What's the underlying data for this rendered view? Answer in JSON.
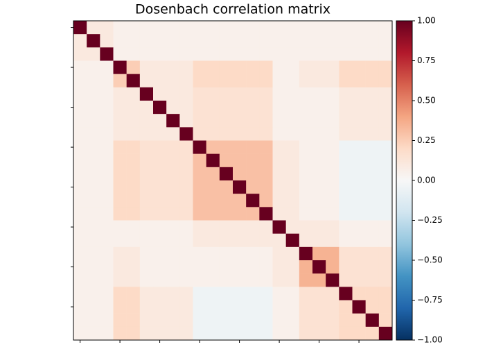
{
  "chart_data": {
    "type": "heatmap",
    "title": "Dosenbach correlation matrix",
    "colormap": "RdBu_r",
    "xlim": [
      -0.5,
      23.5
    ],
    "ylim": [
      -0.5,
      23.5
    ],
    "xticks": [
      0,
      3,
      6,
      9,
      12,
      15,
      18,
      21
    ],
    "yticks": [
      0,
      3,
      6,
      9,
      12,
      15,
      18,
      21
    ],
    "clim": [
      -1,
      1
    ],
    "cticks": [
      {
        "value": -1,
        "label": "−1.00"
      },
      {
        "value": -0.75,
        "label": "−0.75"
      },
      {
        "value": -0.5,
        "label": "−0.50"
      },
      {
        "value": -0.25,
        "label": "−0.25"
      },
      {
        "value": 0,
        "label": "0.00"
      },
      {
        "value": 0.25,
        "label": "0.25"
      },
      {
        "value": 0.5,
        "label": "0.50"
      },
      {
        "value": 0.75,
        "label": "0.75"
      },
      {
        "value": 1,
        "label": "1.00"
      }
    ],
    "matrix": [
      [
        1,
        0.1,
        0.1,
        0.05,
        0.05,
        0.05,
        0.05,
        0.05,
        0.05,
        0.05,
        0.05,
        0.05,
        0.05,
        0.05,
        0.05,
        0.05,
        0.05,
        0.05,
        0.05,
        0.05,
        0.05,
        0.05,
        0.05,
        0.05
      ],
      [
        0.1,
        1,
        0.1,
        0.05,
        0.05,
        0.05,
        0.05,
        0.05,
        0.05,
        0.05,
        0.05,
        0.05,
        0.05,
        0.05,
        0.05,
        0.05,
        0.05,
        0.05,
        0.05,
        0.05,
        0.05,
        0.05,
        0.05,
        0.05
      ],
      [
        0.1,
        0.1,
        1,
        0.05,
        0.05,
        0.05,
        0.05,
        0.05,
        0.05,
        0.05,
        0.05,
        0.05,
        0.05,
        0.05,
        0.05,
        0.05,
        0.05,
        0.05,
        0.05,
        0.05,
        0.05,
        0.05,
        0.05,
        0.05
      ],
      [
        0.05,
        0.05,
        0.05,
        1,
        0.25,
        0.1,
        0.1,
        0.1,
        0.1,
        0.2,
        0.2,
        0.2,
        0.2,
        0.2,
        0.2,
        0.05,
        0.05,
        0.1,
        0.1,
        0.1,
        0.2,
        0.2,
        0.2,
        0.2
      ],
      [
        0.05,
        0.05,
        0.05,
        0.25,
        1,
        0.1,
        0.1,
        0.1,
        0.1,
        0.2,
        0.2,
        0.2,
        0.2,
        0.2,
        0.2,
        0.05,
        0.05,
        0.1,
        0.1,
        0.1,
        0.2,
        0.2,
        0.2,
        0.2
      ],
      [
        0.05,
        0.05,
        0.05,
        0.1,
        0.1,
        1,
        0.1,
        0.1,
        0.1,
        0.15,
        0.15,
        0.15,
        0.15,
        0.15,
        0.15,
        0.05,
        0.05,
        0.05,
        0.05,
        0.05,
        0.1,
        0.1,
        0.1,
        0.1
      ],
      [
        0.05,
        0.05,
        0.05,
        0.1,
        0.1,
        0.1,
        1,
        0.1,
        0.1,
        0.15,
        0.15,
        0.15,
        0.15,
        0.15,
        0.15,
        0.05,
        0.05,
        0.05,
        0.05,
        0.05,
        0.1,
        0.1,
        0.1,
        0.1
      ],
      [
        0.05,
        0.05,
        0.05,
        0.1,
        0.1,
        0.1,
        0.1,
        1,
        0.1,
        0.15,
        0.15,
        0.15,
        0.15,
        0.15,
        0.15,
        0.05,
        0.05,
        0.05,
        0.05,
        0.05,
        0.1,
        0.1,
        0.1,
        0.1
      ],
      [
        0.05,
        0.05,
        0.05,
        0.1,
        0.1,
        0.1,
        0.1,
        0.1,
        1,
        0.15,
        0.15,
        0.15,
        0.15,
        0.15,
        0.15,
        0.05,
        0.05,
        0.05,
        0.05,
        0.05,
        0.1,
        0.1,
        0.1,
        0.1
      ],
      [
        0.05,
        0.05,
        0.05,
        0.2,
        0.2,
        0.15,
        0.15,
        0.15,
        0.15,
        1,
        0.3,
        0.3,
        0.3,
        0.3,
        0.3,
        0.1,
        0.1,
        0.05,
        0.05,
        0.05,
        -0.05,
        -0.05,
        -0.05,
        -0.05
      ],
      [
        0.05,
        0.05,
        0.05,
        0.2,
        0.2,
        0.15,
        0.15,
        0.15,
        0.15,
        0.3,
        1,
        0.3,
        0.3,
        0.3,
        0.3,
        0.1,
        0.1,
        0.05,
        0.05,
        0.05,
        -0.05,
        -0.05,
        -0.05,
        -0.05
      ],
      [
        0.05,
        0.05,
        0.05,
        0.2,
        0.2,
        0.15,
        0.15,
        0.15,
        0.15,
        0.3,
        0.3,
        1,
        0.3,
        0.3,
        0.3,
        0.1,
        0.1,
        0.05,
        0.05,
        0.05,
        -0.05,
        -0.05,
        -0.05,
        -0.05
      ],
      [
        0.05,
        0.05,
        0.05,
        0.2,
        0.2,
        0.15,
        0.15,
        0.15,
        0.15,
        0.3,
        0.3,
        0.3,
        1,
        0.3,
        0.3,
        0.1,
        0.1,
        0.05,
        0.05,
        0.05,
        -0.05,
        -0.05,
        -0.05,
        -0.05
      ],
      [
        0.05,
        0.05,
        0.05,
        0.2,
        0.2,
        0.15,
        0.15,
        0.15,
        0.15,
        0.3,
        0.3,
        0.3,
        0.3,
        1,
        0.3,
        0.1,
        0.1,
        0.05,
        0.05,
        0.05,
        -0.05,
        -0.05,
        -0.05,
        -0.05
      ],
      [
        0.05,
        0.05,
        0.05,
        0.2,
        0.2,
        0.15,
        0.15,
        0.15,
        0.15,
        0.3,
        0.3,
        0.3,
        0.3,
        0.3,
        1,
        0.1,
        0.1,
        0.05,
        0.05,
        0.05,
        -0.05,
        -0.05,
        -0.05,
        -0.05
      ],
      [
        0.05,
        0.05,
        0.05,
        0.05,
        0.05,
        0.05,
        0.05,
        0.05,
        0.05,
        0.1,
        0.1,
        0.1,
        0.1,
        0.1,
        0.1,
        1,
        0.1,
        0.1,
        0.1,
        0.1,
        0.05,
        0.05,
        0.05,
        0.05
      ],
      [
        0.05,
        0.05,
        0.05,
        0.05,
        0.05,
        0.05,
        0.05,
        0.05,
        0.05,
        0.1,
        0.1,
        0.1,
        0.1,
        0.1,
        0.1,
        0.1,
        1,
        0.1,
        0.1,
        0.1,
        0.05,
        0.05,
        0.05,
        0.05
      ],
      [
        0.05,
        0.05,
        0.05,
        0.1,
        0.1,
        0.05,
        0.05,
        0.05,
        0.05,
        0.05,
        0.05,
        0.05,
        0.05,
        0.05,
        0.05,
        0.1,
        0.1,
        1,
        0.35,
        0.35,
        0.15,
        0.15,
        0.15,
        0.15
      ],
      [
        0.05,
        0.05,
        0.05,
        0.1,
        0.1,
        0.05,
        0.05,
        0.05,
        0.05,
        0.05,
        0.05,
        0.05,
        0.05,
        0.05,
        0.05,
        0.1,
        0.1,
        0.35,
        1,
        0.35,
        0.15,
        0.15,
        0.15,
        0.15
      ],
      [
        0.05,
        0.05,
        0.05,
        0.1,
        0.1,
        0.05,
        0.05,
        0.05,
        0.05,
        0.05,
        0.05,
        0.05,
        0.05,
        0.05,
        0.05,
        0.1,
        0.1,
        0.35,
        0.35,
        1,
        0.15,
        0.15,
        0.15,
        0.15
      ],
      [
        0.05,
        0.05,
        0.05,
        0.2,
        0.2,
        0.1,
        0.1,
        0.1,
        0.1,
        -0.05,
        -0.05,
        -0.05,
        -0.05,
        -0.05,
        -0.05,
        0.05,
        0.05,
        0.15,
        0.15,
        0.15,
        1,
        0.2,
        0.2,
        0.2
      ],
      [
        0.05,
        0.05,
        0.05,
        0.2,
        0.2,
        0.1,
        0.1,
        0.1,
        0.1,
        -0.05,
        -0.05,
        -0.05,
        -0.05,
        -0.05,
        -0.05,
        0.05,
        0.05,
        0.15,
        0.15,
        0.15,
        0.2,
        1,
        0.2,
        0.2
      ],
      [
        0.05,
        0.05,
        0.05,
        0.2,
        0.2,
        0.1,
        0.1,
        0.1,
        0.1,
        -0.05,
        -0.05,
        -0.05,
        -0.05,
        -0.05,
        -0.05,
        0.05,
        0.05,
        0.15,
        0.15,
        0.15,
        0.2,
        0.2,
        1,
        0.2
      ],
      [
        0.05,
        0.05,
        0.05,
        0.2,
        0.2,
        0.1,
        0.1,
        0.1,
        0.1,
        -0.05,
        -0.05,
        -0.05,
        -0.05,
        -0.05,
        -0.05,
        0.05,
        0.05,
        0.15,
        0.15,
        0.15,
        0.2,
        0.2,
        0.2,
        1
      ]
    ]
  }
}
